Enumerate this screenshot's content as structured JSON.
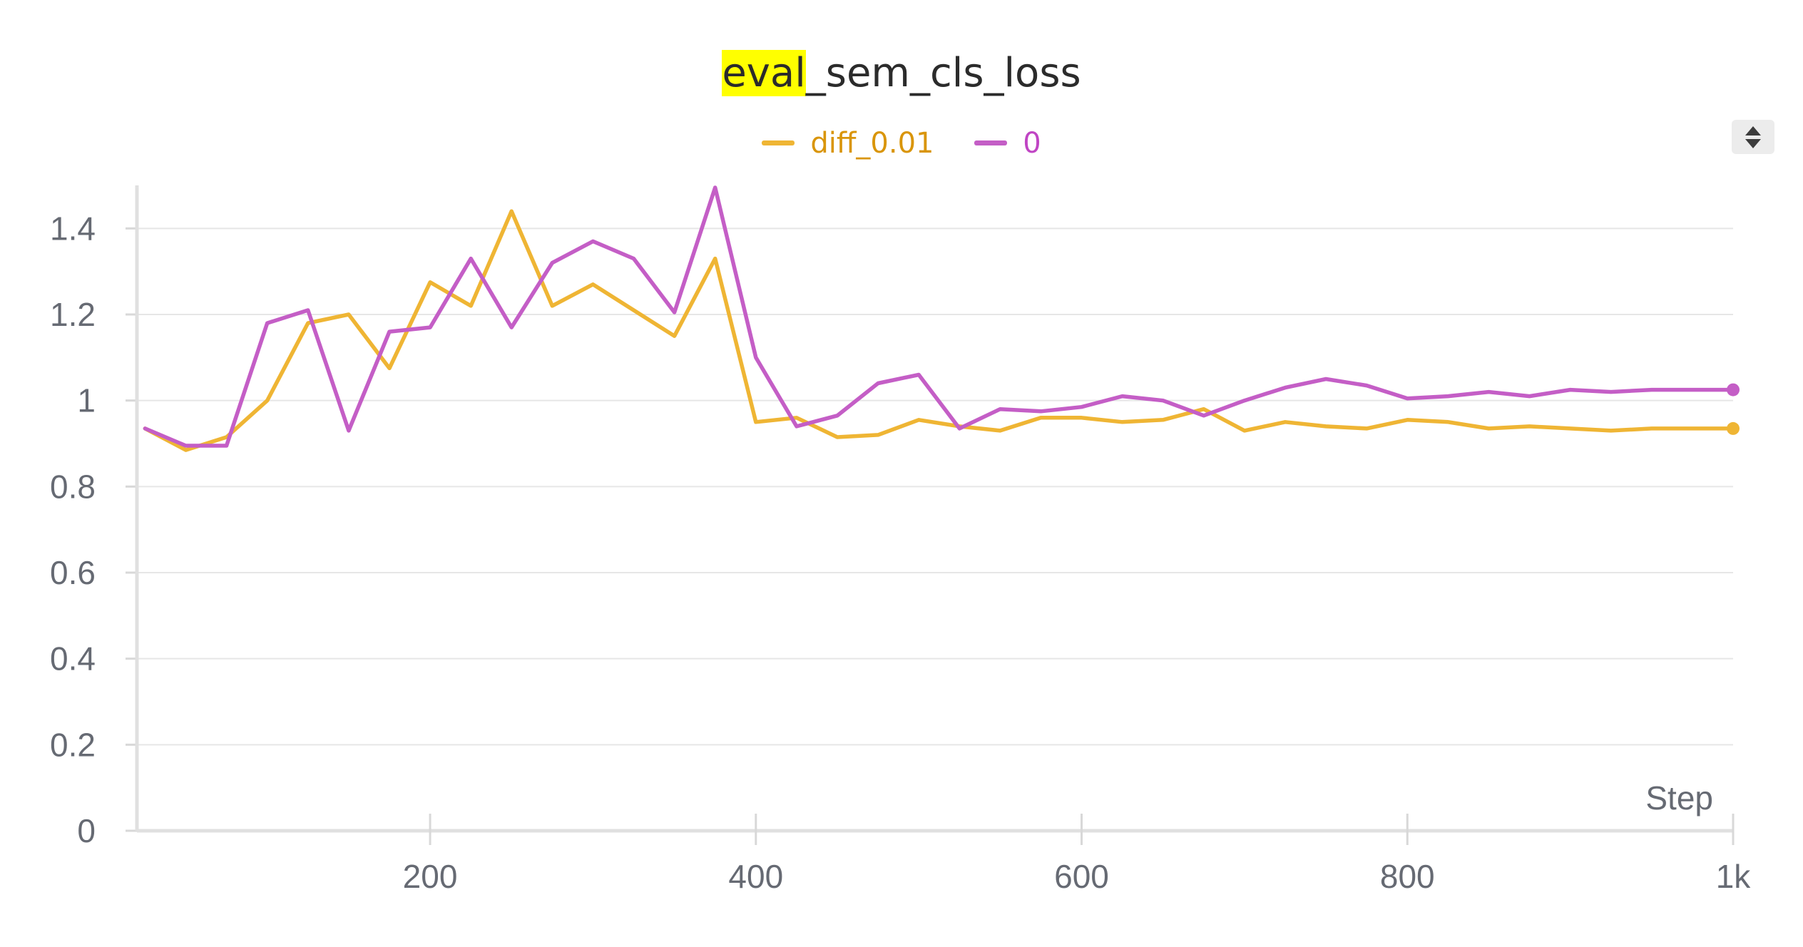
{
  "chart_data": {
    "type": "line",
    "title_highlight": "eval",
    "title_rest": "_sem_cls_loss",
    "xlabel": "Step",
    "ylabel": "",
    "xlim": [
      20,
      1000
    ],
    "ylim": [
      0,
      1.5
    ],
    "x_ticks": [
      200,
      400,
      600,
      800,
      1000
    ],
    "x_tick_labels": [
      "200",
      "400",
      "600",
      "800",
      "1k"
    ],
    "y_ticks": [
      0,
      0.2,
      0.4,
      0.6,
      0.8,
      1,
      1.2,
      1.4
    ],
    "y_tick_labels": [
      "0",
      "0.2",
      "0.4",
      "0.6",
      "0.8",
      "1",
      "1.2",
      "1.4"
    ],
    "grid": true,
    "legend_position": "top-center",
    "x": [
      25,
      50,
      75,
      100,
      125,
      150,
      175,
      200,
      225,
      250,
      275,
      300,
      325,
      350,
      375,
      400,
      425,
      450,
      475,
      500,
      525,
      550,
      575,
      600,
      625,
      650,
      675,
      700,
      725,
      750,
      775,
      800,
      825,
      850,
      875,
      900,
      925,
      950,
      975,
      1000
    ],
    "series": [
      {
        "name": "diff_0.01",
        "color": "#efb534",
        "legend_text_color": "#d9950a",
        "values": [
          0.935,
          0.885,
          0.915,
          1.0,
          1.18,
          1.2,
          1.075,
          1.275,
          1.22,
          1.44,
          1.22,
          1.27,
          1.21,
          1.15,
          1.33,
          0.95,
          0.96,
          0.915,
          0.92,
          0.955,
          0.94,
          0.93,
          0.96,
          0.96,
          0.95,
          0.955,
          0.98,
          0.93,
          0.95,
          0.94,
          0.935,
          0.955,
          0.95,
          0.935,
          0.94,
          0.935,
          0.93,
          0.935,
          0.935,
          0.935
        ]
      },
      {
        "name": "0",
        "color": "#c45ec6",
        "legend_text_color": "#c045c4",
        "values": [
          0.935,
          0.895,
          0.895,
          1.18,
          1.21,
          0.93,
          1.16,
          1.17,
          1.33,
          1.17,
          1.32,
          1.37,
          1.33,
          1.205,
          1.495,
          1.1,
          0.94,
          0.965,
          1.04,
          1.06,
          0.935,
          0.98,
          0.975,
          0.985,
          1.01,
          1.0,
          0.965,
          1.0,
          1.03,
          1.05,
          1.035,
          1.005,
          1.01,
          1.02,
          1.01,
          1.025,
          1.02,
          1.025,
          1.025,
          1.025
        ]
      }
    ]
  },
  "controls": {
    "sort_icon": "sort-icon"
  }
}
